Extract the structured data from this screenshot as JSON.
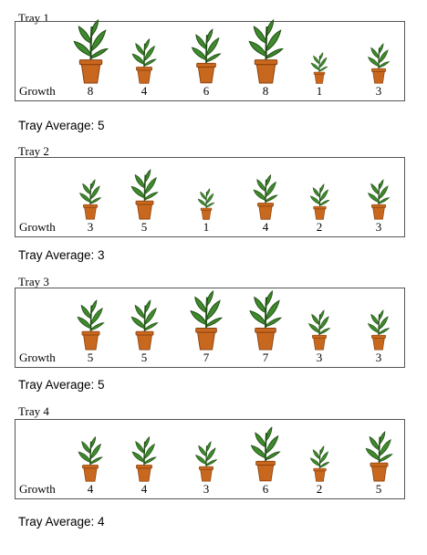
{
  "growth_label": "Growth",
  "colors": {
    "pot": "#c8681e",
    "pot_dark": "#8a3f0c",
    "leaf": "#3f8a2c",
    "leaf_dark": "#1f4d14"
  },
  "trays": [
    {
      "title": "Tray 1",
      "average": "Tray Average: 5",
      "values": [
        8,
        4,
        6,
        8,
        1,
        3
      ]
    },
    {
      "title": "Tray 2",
      "average": "Tray Average: 3",
      "values": [
        3,
        5,
        1,
        4,
        2,
        3
      ]
    },
    {
      "title": "Tray 3",
      "average": "Tray Average: 5",
      "values": [
        5,
        5,
        7,
        7,
        3,
        3
      ]
    },
    {
      "title": "Tray 4",
      "average": "Tray Average: 4",
      "values": [
        4,
        4,
        3,
        6,
        2,
        5
      ]
    }
  ]
}
